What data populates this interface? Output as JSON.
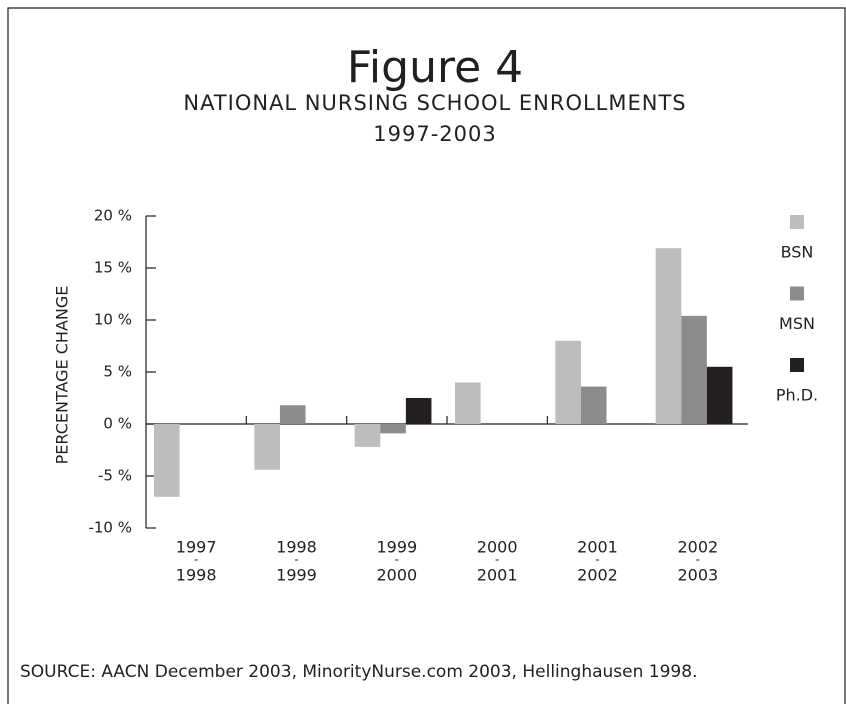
{
  "chart_data": {
    "type": "bar",
    "title": "Figure 4",
    "subtitle": [
      "NATIONAL NURSING SCHOOL ENROLLMENTS",
      "1997-2003"
    ],
    "y_label": "PERCENTAGE CHANGE",
    "source": "SOURCE: AACN December 2003, MinorityNurse.com 2003, Hellinghausen 1998.",
    "categories": [
      [
        "1997",
        "-",
        "1998"
      ],
      [
        "1998",
        "-",
        "1999"
      ],
      [
        "1999",
        "-",
        "2000"
      ],
      [
        "2000",
        "-",
        "2001"
      ],
      [
        "2001",
        "-",
        "2002"
      ],
      [
        "2002",
        "-",
        "2003"
      ]
    ],
    "series": [
      {
        "name": "BSN",
        "color": "#bdbdbd",
        "values": [
          -7,
          -4.4,
          -2.2,
          4,
          8,
          16.9
        ]
      },
      {
        "name": "MSN",
        "color": "#8c8c8c",
        "values": [
          0,
          1.8,
          -0.9,
          0,
          3.6,
          10.4
        ]
      },
      {
        "name": "Ph.D.",
        "color": "#231f20",
        "values": [
          0,
          0,
          2.5,
          0,
          0,
          5.5
        ]
      }
    ],
    "ylim": [
      -10,
      20
    ],
    "yticks": [
      {
        "value": -10,
        "label": "-10 %"
      },
      {
        "value": -5,
        "label": "-5 %"
      },
      {
        "value": 0,
        "label": "0 %"
      },
      {
        "value": 5,
        "label": "5 %"
      },
      {
        "value": 10,
        "label": "10 %"
      },
      {
        "value": 15,
        "label": "15 %"
      },
      {
        "value": 20,
        "label": "20 %"
      }
    ],
    "legend": "right"
  }
}
